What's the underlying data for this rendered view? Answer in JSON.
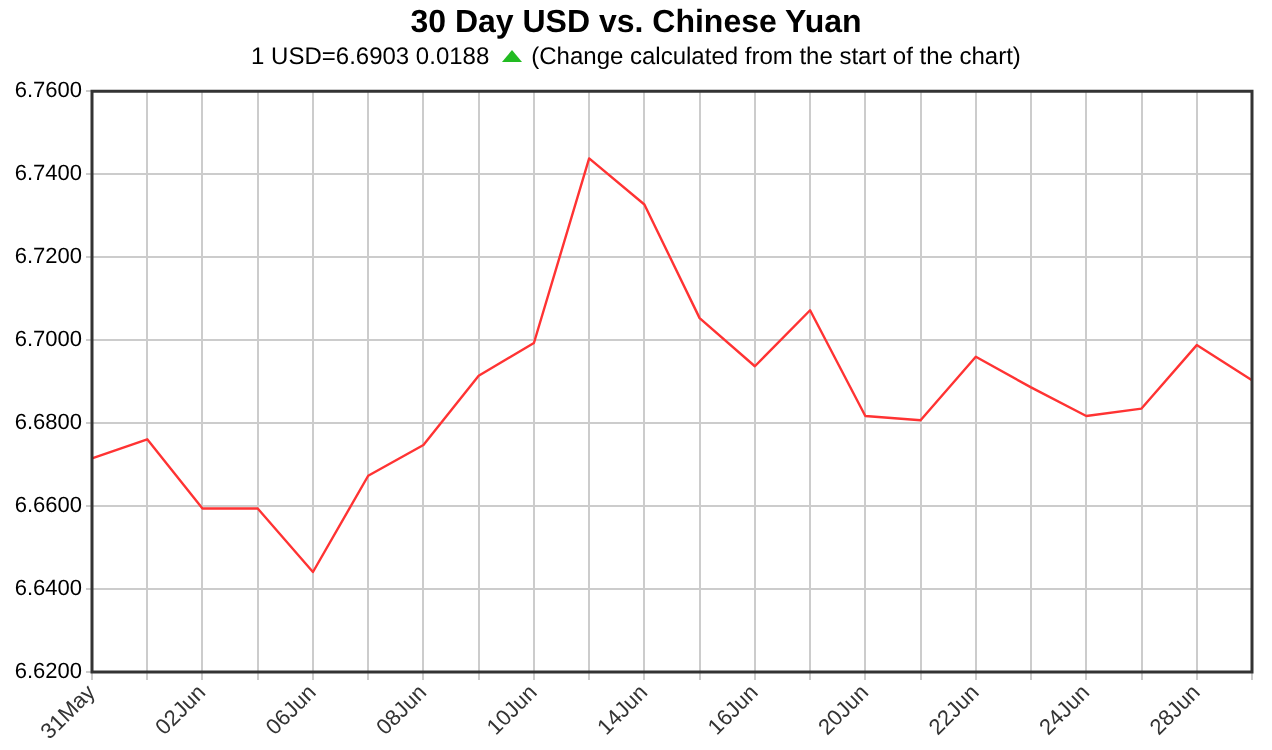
{
  "chart_data": {
    "type": "line",
    "title": "30 Day USD vs. Chinese Yuan",
    "subtitle": "1 USD=6.6903  0.0188",
    "annotations": [
      "(Change calculated from the start of the chart)"
    ],
    "categories": [
      "31May",
      null,
      "02Jun",
      null,
      "06Jun",
      null,
      "08Jun",
      null,
      "10Jun",
      null,
      "14Jun",
      null,
      "16Jun",
      null,
      "20Jun",
      null,
      "22Jun",
      null,
      "24Jun",
      null,
      "28Jun",
      null
    ],
    "series": [
      {
        "color": "#ff3333",
        "values": [
          6.6715,
          6.6761,
          6.6594,
          6.6594,
          6.6441,
          6.6673,
          6.6747,
          6.6914,
          6.6993,
          6.7438,
          6.7327,
          6.7053,
          6.6937,
          6.7072,
          6.6817,
          6.6807,
          6.696,
          6.6886,
          6.6817,
          6.6835,
          6.6988,
          6.6903
        ]
      }
    ],
    "ylim": [
      6.62,
      6.76
    ],
    "yticks": [
      {
        "value": 6.62,
        "label": "6.6200"
      },
      {
        "value": 6.64,
        "label": "6.6400"
      },
      {
        "value": 6.66,
        "label": "6.6600"
      },
      {
        "value": 6.68,
        "label": "6.6800"
      },
      {
        "value": 6.7,
        "label": "6.7000"
      },
      {
        "value": 6.72,
        "label": "6.7200"
      },
      {
        "value": 6.74,
        "label": "6.7400"
      },
      {
        "value": 6.76,
        "label": "6.7600"
      }
    ],
    "grid": true,
    "legend": false,
    "marker": "none",
    "line_style": "solid"
  }
}
